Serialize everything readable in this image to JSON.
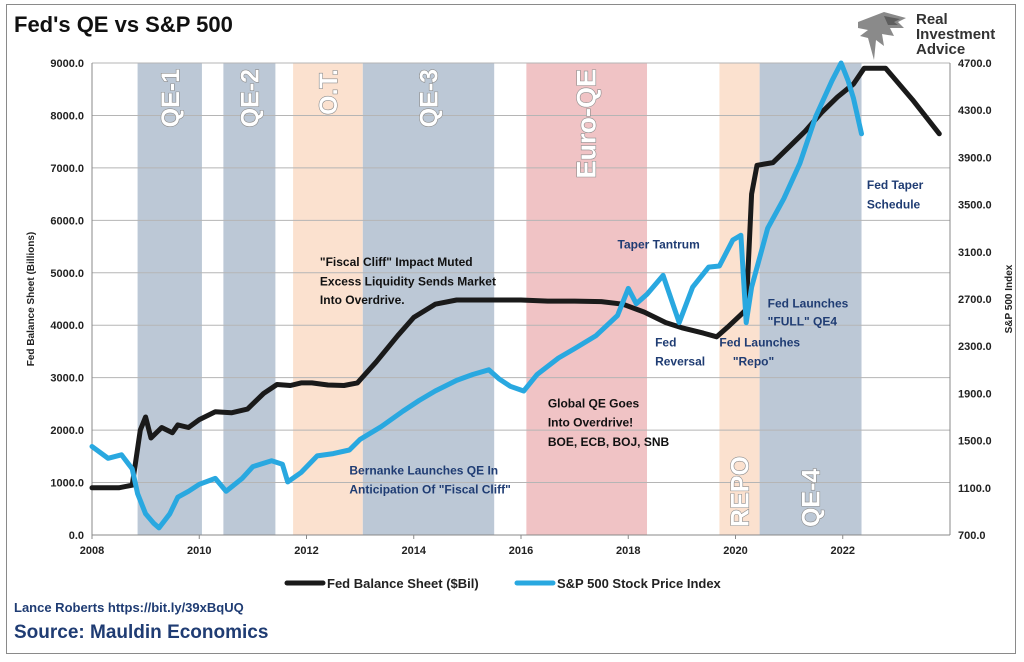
{
  "title": "Fed's QE vs S&P 500",
  "brand": {
    "logo_icon": "eagle-icon",
    "lines": [
      "Real",
      "Investment",
      "Advice"
    ]
  },
  "credit": "Lance Roberts https://bit.ly/39xBqUQ",
  "source": "Source: Mauldin Economics",
  "chart_data": {
    "type": "line",
    "xlim": [
      2008,
      2024
    ],
    "x_ticks": [
      "2008",
      "2010",
      "2012",
      "2014",
      "2016",
      "2018",
      "2020",
      "2022"
    ],
    "y_left": {
      "label": "Fed Balance Sheet (Billions)",
      "range": [
        0,
        9000
      ],
      "ticks": [
        "0.0",
        "1000.0",
        "2000.0",
        "3000.0",
        "4000.0",
        "5000.0",
        "6000.0",
        "7000.0",
        "8000.0",
        "9000.0"
      ]
    },
    "y_right": {
      "label": "S&P 500 Index",
      "range": [
        700,
        4700
      ],
      "ticks": [
        "700.0",
        "1100.0",
        "1500.0",
        "1900.0",
        "2300.0",
        "2700.0",
        "3100.0",
        "3500.0",
        "3900.0",
        "4300.0",
        "4700.0"
      ]
    },
    "grid": "horizontal",
    "legend_position": "bottom",
    "periods": [
      {
        "label": "QE-1",
        "start": 2008.85,
        "end": 2010.05,
        "color": "#bcc8d6"
      },
      {
        "label": "QE-2",
        "start": 2010.45,
        "end": 2011.42,
        "color": "#bcc8d6"
      },
      {
        "label": "O.T.",
        "start": 2011.75,
        "end": 2013.05,
        "color": "#fbe1cf"
      },
      {
        "label": "QE-3",
        "start": 2013.05,
        "end": 2015.5,
        "color": "#bcc8d6"
      },
      {
        "label": "Euro-QE",
        "start": 2016.1,
        "end": 2018.35,
        "color": "#f0c3c5"
      },
      {
        "label": "REPO",
        "start": 2019.7,
        "end": 2020.45,
        "color": "#fbe1cf"
      },
      {
        "label": "QE-4",
        "start": 2020.45,
        "end": 2022.35,
        "color": "#bcc8d6"
      }
    ],
    "annotations": [
      {
        "text": "Fed Taper",
        "x": 2022.45,
        "y": 6600,
        "color": "#1f3c73"
      },
      {
        "text": "Schedule",
        "x": 2022.45,
        "y": 6230,
        "color": "#1f3c73"
      },
      {
        "text": "Taper Tantrum",
        "x": 2017.8,
        "y": 5460,
        "color": "#1f3c73"
      },
      {
        "text": "\"Fiscal Cliff\" Impact Muted",
        "x": 2012.25,
        "y": 5130,
        "color": "#111111"
      },
      {
        "text": "Excess Liquidity Sends Market",
        "x": 2012.25,
        "y": 4760,
        "color": "#111111"
      },
      {
        "text": "Into Overdrive.",
        "x": 2012.25,
        "y": 4400,
        "color": "#111111"
      },
      {
        "text": "Fed Launches",
        "x": 2020.6,
        "y": 4340,
        "color": "#1f3c73"
      },
      {
        "text": "\"FULL\" QE4",
        "x": 2020.6,
        "y": 3990,
        "color": "#1f3c73"
      },
      {
        "text": "Fed",
        "x": 2018.5,
        "y": 3590,
        "color": "#1f3c73"
      },
      {
        "text": "Reversal",
        "x": 2018.5,
        "y": 3230,
        "color": "#1f3c73"
      },
      {
        "text": "Fed Launches",
        "x": 2019.7,
        "y": 3590,
        "color": "#1f3c73"
      },
      {
        "text": "\"Repo\"",
        "x": 2019.95,
        "y": 3230,
        "color": "#1f3c73"
      },
      {
        "text": "Global QE Goes",
        "x": 2016.5,
        "y": 2430,
        "color": "#111111"
      },
      {
        "text": "Into Overdrive!",
        "x": 2016.5,
        "y": 2070,
        "color": "#111111"
      },
      {
        "text": "BOE, ECB, BOJ, SNB",
        "x": 2016.5,
        "y": 1700,
        "color": "#111111"
      },
      {
        "text": "Bernanke Launches QE In",
        "x": 2012.8,
        "y": 1150,
        "color": "#1f3c73"
      },
      {
        "text": "Anticipation Of \"Fiscal Cliff\"",
        "x": 2012.8,
        "y": 790,
        "color": "#1f3c73"
      }
    ],
    "series": [
      {
        "name": "Fed Balance Sheet ($Bil)",
        "axis": "left",
        "color": "#1a1a1a",
        "x": [
          2008.0,
          2008.5,
          2008.75,
          2008.9,
          2009.0,
          2009.1,
          2009.3,
          2009.5,
          2009.6,
          2009.8,
          2010.0,
          2010.3,
          2010.6,
          2010.9,
          2011.2,
          2011.45,
          2011.7,
          2011.9,
          2012.1,
          2012.4,
          2012.7,
          2012.95,
          2013.3,
          2013.7,
          2014.0,
          2014.4,
          2014.8,
          2015.0,
          2015.5,
          2016.0,
          2016.5,
          2017.0,
          2017.5,
          2017.9,
          2018.3,
          2018.7,
          2019.0,
          2019.4,
          2019.65,
          2019.85,
          2020.1,
          2020.2,
          2020.3,
          2020.4,
          2020.7,
          2021.0,
          2021.3,
          2021.6,
          2021.9,
          2022.2,
          2022.4,
          2022.8,
          2023.3,
          2023.8
        ],
        "values": [
          900,
          900,
          950,
          2000,
          2250,
          1850,
          2050,
          1950,
          2100,
          2050,
          2200,
          2350,
          2330,
          2400,
          2700,
          2870,
          2850,
          2900,
          2900,
          2860,
          2850,
          2900,
          3300,
          3800,
          4150,
          4400,
          4480,
          4480,
          4480,
          4480,
          4460,
          4460,
          4450,
          4400,
          4250,
          4050,
          3950,
          3850,
          3780,
          3960,
          4200,
          4300,
          6500,
          7050,
          7100,
          7400,
          7700,
          8050,
          8350,
          8600,
          8900,
          8900,
          8300,
          7650
        ]
      },
      {
        "name": "S&P 500 Stock Price Index",
        "axis": "right",
        "color": "#29a8e0",
        "x": [
          2008.0,
          2008.3,
          2008.55,
          2008.75,
          2008.85,
          2009.0,
          2009.15,
          2009.25,
          2009.45,
          2009.6,
          2009.8,
          2010.0,
          2010.3,
          2010.5,
          2010.8,
          2011.0,
          2011.35,
          2011.55,
          2011.65,
          2011.9,
          2012.2,
          2012.5,
          2012.8,
          2013.0,
          2013.4,
          2013.8,
          2014.1,
          2014.4,
          2014.8,
          2015.1,
          2015.4,
          2015.6,
          2015.8,
          2016.05,
          2016.3,
          2016.7,
          2017.0,
          2017.4,
          2017.8,
          2018.0,
          2018.15,
          2018.35,
          2018.65,
          2018.95,
          2019.2,
          2019.5,
          2019.7,
          2019.95,
          2020.1,
          2020.2,
          2020.3,
          2020.6,
          2020.9,
          2021.2,
          2021.5,
          2021.8,
          2021.97,
          2022.1,
          2022.2,
          2022.35
        ],
        "values": [
          1450,
          1350,
          1380,
          1260,
          1050,
          880,
          800,
          760,
          880,
          1020,
          1070,
          1130,
          1180,
          1070,
          1180,
          1280,
          1330,
          1300,
          1150,
          1230,
          1370,
          1390,
          1420,
          1510,
          1620,
          1750,
          1840,
          1920,
          2010,
          2060,
          2100,
          2020,
          1960,
          1920,
          2060,
          2200,
          2280,
          2390,
          2560,
          2790,
          2660,
          2740,
          2900,
          2500,
          2800,
          2970,
          2980,
          3200,
          3240,
          2500,
          2800,
          3300,
          3550,
          3850,
          4250,
          4550,
          4700,
          4550,
          4400,
          4100
        ]
      }
    ]
  }
}
